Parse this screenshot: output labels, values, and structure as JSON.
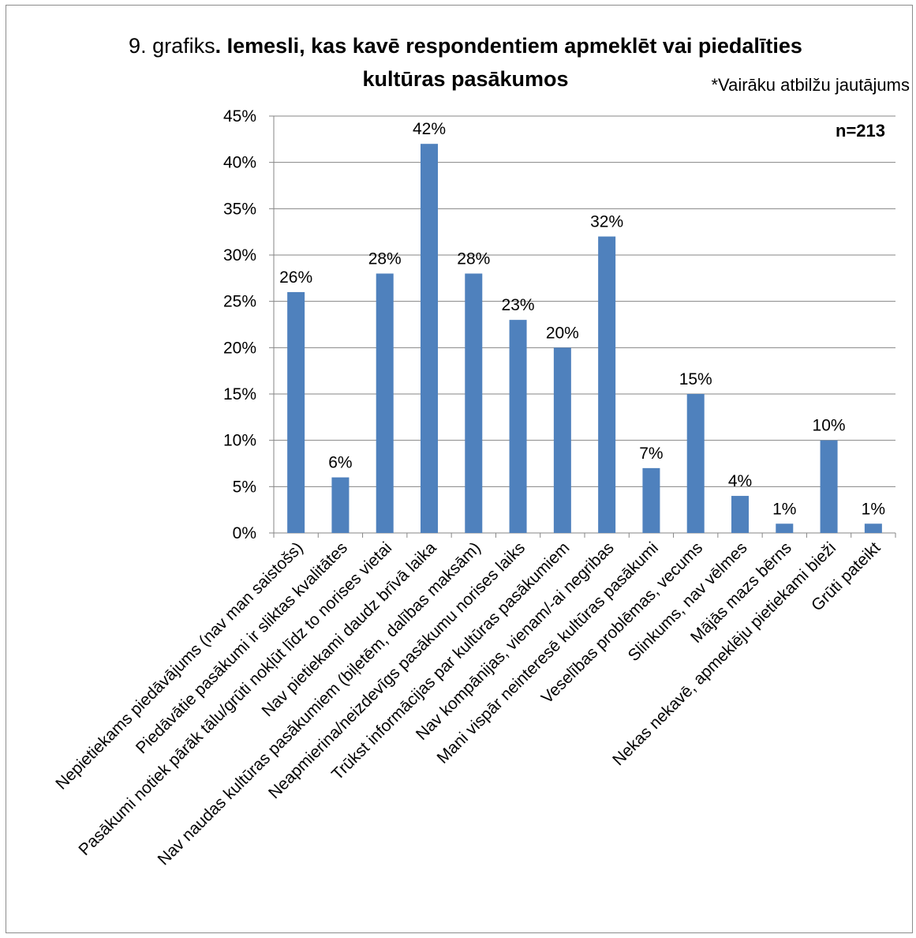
{
  "chart_data": {
    "type": "bar",
    "title_prefix": "9. grafiks",
    "title_bold_1": ". Iemesli, kas kavē respondentiem apmeklēt vai piedalīties",
    "title_bold_2": "kultūras pasākumos",
    "note": "*Vairāku atbilžu jautājums",
    "sample_label": "n=213",
    "categories": [
      "Nepietiekams piedāvājums (nav man saistošs)",
      "Piedāvātie pasākumi ir sliktas kvalitātes",
      "Pasākumi notiek pārāk tālu/grūti nokļūt līdz to norises vietai",
      "Nav pietiekami daudz brīvā laika",
      "Nav naudas kultūras pasākumiem (biļetēm, dalības maksām)",
      "Neapmierina/neizdevīgs pasākumu norises laiks",
      "Trūkst informācijas par kultūras pasākumiem",
      "Nav kompānijas, vienam/-ai negribas",
      "Mani vispār neinteresē kultūras pasākumi",
      "Veselības problēmas, vecums",
      "Slinkums, nav vēlmes",
      "Mājās mazs bērns",
      "Nekas nekavē, apmeklēju pietiekami bieži",
      "Grūti pateikt"
    ],
    "values": [
      26,
      6,
      28,
      42,
      28,
      23,
      20,
      32,
      7,
      15,
      4,
      1,
      10,
      1
    ],
    "value_labels": [
      "26%",
      "6%",
      "28%",
      "42%",
      "28%",
      "23%",
      "20%",
      "32%",
      "7%",
      "15%",
      "4%",
      "1%",
      "10%",
      "1%"
    ],
    "y_ticks": [
      "0%",
      "5%",
      "10%",
      "15%",
      "20%",
      "25%",
      "30%",
      "35%",
      "40%",
      "45%"
    ],
    "ylim": [
      0,
      45
    ],
    "grid": true,
    "bar_color": "#4f81bd",
    "grid_color": "#868686"
  }
}
